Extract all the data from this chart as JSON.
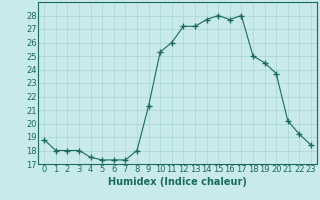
{
  "x": [
    0,
    1,
    2,
    3,
    4,
    5,
    6,
    7,
    8,
    9,
    10,
    11,
    12,
    13,
    14,
    15,
    16,
    17,
    18,
    19,
    20,
    21,
    22,
    23
  ],
  "y": [
    18.8,
    18.0,
    18.0,
    18.0,
    17.5,
    17.3,
    17.3,
    17.3,
    18.0,
    21.3,
    25.3,
    26.0,
    27.2,
    27.2,
    27.7,
    28.0,
    27.7,
    28.0,
    25.0,
    24.5,
    23.7,
    20.2,
    19.2,
    18.4
  ],
  "line_color": "#1a6b5a",
  "marker": "+",
  "marker_size": 4,
  "bg_color": "#c8eaea",
  "grid_color": "#aad4d4",
  "xlim": [
    -0.5,
    23.5
  ],
  "ylim": [
    17,
    29
  ],
  "yticks": [
    17,
    18,
    19,
    20,
    21,
    22,
    23,
    24,
    25,
    26,
    27,
    28
  ],
  "xticks": [
    0,
    1,
    2,
    3,
    4,
    5,
    6,
    7,
    8,
    9,
    10,
    11,
    12,
    13,
    14,
    15,
    16,
    17,
    18,
    19,
    20,
    21,
    22,
    23
  ],
  "xlabel": "Humidex (Indice chaleur)",
  "xlabel_fontsize": 7,
  "tick_fontsize": 6
}
